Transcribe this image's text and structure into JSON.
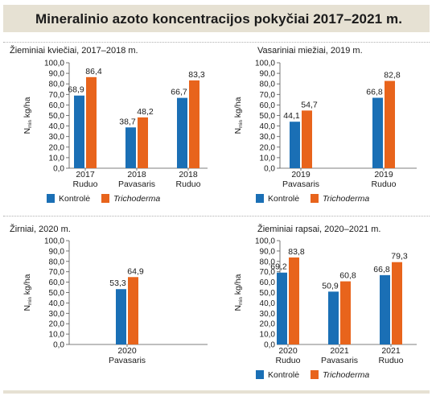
{
  "title": "Mineralinio azoto koncentracijos pokyčiai 2017–2021 m.",
  "colors": {
    "kontrole": "#1a6fb5",
    "trichoderma": "#e8641c",
    "axis": "#555555",
    "title_bg": "#e6e1d3"
  },
  "chart_data": [
    {
      "type": "bar",
      "title": "Žieminiai kviečiai, 2017–2018 m.",
      "ylabel_main": "N",
      "ylabel_sub": "min",
      "ylabel_unit": " kg/ha",
      "ylim": [
        0,
        100
      ],
      "yticks": [
        "100,0",
        "90,0",
        "80,0",
        "70,0",
        "60,0",
        "50,0",
        "40,0",
        "30,0",
        "20,0",
        "10,0",
        "0,0"
      ],
      "categories": [
        [
          "2017",
          "Ruduo"
        ],
        [
          "2018",
          "Pavasaris"
        ],
        [
          "2018",
          "Ruduo"
        ]
      ],
      "series": [
        {
          "name": "Kontrolė",
          "values": [
            68.9,
            38.7,
            66.7
          ],
          "labels": [
            "68,9",
            "38,7",
            "66,7"
          ]
        },
        {
          "name": "Trichoderma",
          "values": [
            86.4,
            48.2,
            83.3
          ],
          "labels": [
            "86,4",
            "48,2",
            "83,3"
          ]
        }
      ],
      "legend": [
        "Kontrolė",
        "Trichoderma"
      ]
    },
    {
      "type": "bar",
      "title": "Vasariniai miežiai, 2019 m.",
      "ylabel_main": "N",
      "ylabel_sub": "min",
      "ylabel_unit": " kg/ha",
      "ylim": [
        0,
        100
      ],
      "yticks": [
        "100,0",
        "90,0",
        "80,0",
        "70,0",
        "60,0",
        "50,0",
        "40,0",
        "30,0",
        "20,0",
        "10,0",
        "0,0"
      ],
      "categories": [
        [
          "2019",
          "Pavasaris"
        ],
        [
          "2019",
          "Ruduo"
        ]
      ],
      "series": [
        {
          "name": "Kontrolė",
          "values": [
            44.1,
            66.8
          ],
          "labels": [
            "44,1",
            "66,8"
          ]
        },
        {
          "name": "Trichoderma",
          "values": [
            54.7,
            82.8
          ],
          "labels": [
            "54,7",
            "82,8"
          ]
        }
      ],
      "legend": [
        "Kontrolė",
        "Trichoderma"
      ]
    },
    {
      "type": "bar",
      "title": "Žirniai, 2020 m.",
      "ylabel_main": "N",
      "ylabel_sub": "min",
      "ylabel_unit": " kg/ha",
      "ylim": [
        0,
        100
      ],
      "yticks": [
        "100,0",
        "90,0",
        "80,0",
        "70,0",
        "60,0",
        "50,0",
        "40,0",
        "30,0",
        "20,0",
        "10,0",
        "0,0"
      ],
      "categories": [
        [
          "2020",
          "Pavasaris"
        ]
      ],
      "series": [
        {
          "name": "Kontrolė",
          "values": [
            53.3
          ],
          "labels": [
            "53,3"
          ]
        },
        {
          "name": "Trichoderma",
          "values": [
            64.9
          ],
          "labels": [
            "64,9"
          ]
        }
      ],
      "legend": []
    },
    {
      "type": "bar",
      "title": "Žieminiai rapsai, 2020–2021 m.",
      "ylabel_main": "N",
      "ylabel_sub": "min",
      "ylabel_unit": " kg/ha",
      "ylim": [
        0,
        100
      ],
      "yticks": [
        "100,0",
        "90,0",
        "80,0",
        "70,0",
        "60,0",
        "50,0",
        "40,0",
        "30,0",
        "20,0",
        "10,0",
        "0,0"
      ],
      "categories": [
        [
          "2020",
          "Ruduo"
        ],
        [
          "2021",
          "Pavasaris"
        ],
        [
          "2021",
          "Ruduo"
        ]
      ],
      "series": [
        {
          "name": "Kontrolė",
          "values": [
            69.2,
            50.9,
            66.8
          ],
          "labels": [
            "69,2",
            "50,9",
            "66,8"
          ]
        },
        {
          "name": "Trichoderma",
          "values": [
            83.8,
            60.8,
            79.3
          ],
          "labels": [
            "83,8",
            "60,8",
            "79,3"
          ]
        }
      ],
      "legend": [
        "Kontrolė",
        "Trichoderma"
      ]
    }
  ]
}
